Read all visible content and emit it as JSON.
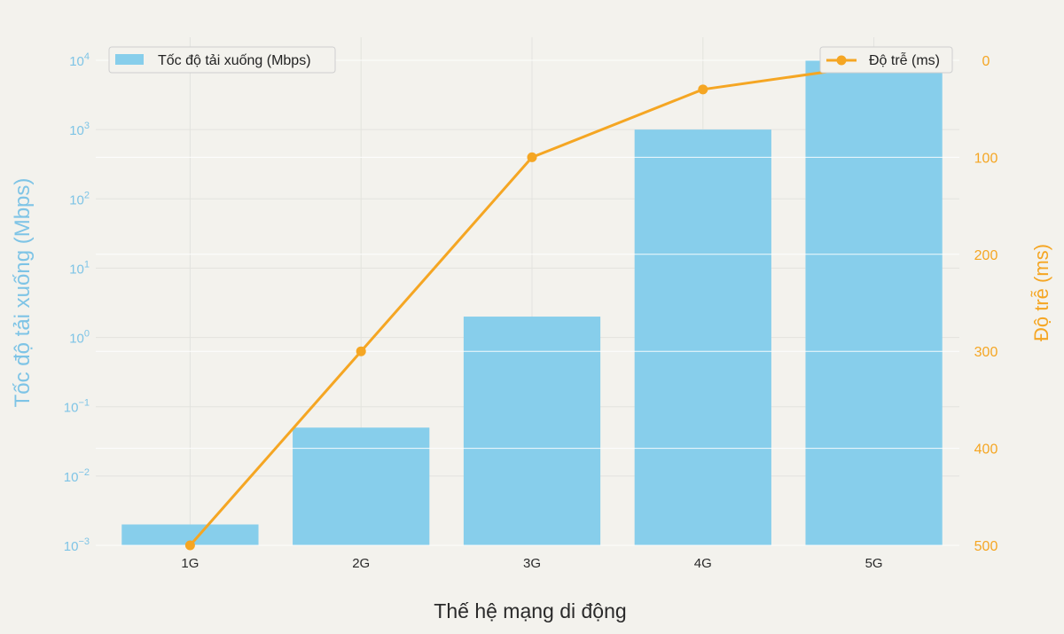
{
  "chart_data": {
    "type": "bar",
    "categories": [
      "1G",
      "2G",
      "3G",
      "4G",
      "5G"
    ],
    "xlabel": "Thế hệ mạng di động",
    "series": [
      {
        "name": "Tốc độ tải xuống (Mbps)",
        "type": "bar",
        "axis": "left",
        "color": "#87ceeb",
        "values": [
          0.002,
          0.05,
          2,
          1000,
          10000
        ]
      },
      {
        "name": "Độ trễ (ms)",
        "type": "line",
        "axis": "right",
        "color": "#f5a623",
        "values": [
          500,
          300,
          100,
          30,
          5
        ]
      }
    ],
    "y_left": {
      "label": "Tốc độ tải xuống (Mbps)",
      "scale": "log",
      "lim": [
        0.001,
        10000
      ],
      "ticks": [
        {
          "base": "10",
          "exp": "4"
        },
        {
          "base": "10",
          "exp": "3"
        },
        {
          "base": "10",
          "exp": "2"
        },
        {
          "base": "10",
          "exp": "1"
        },
        {
          "base": "10",
          "exp": "0"
        },
        {
          "base": "10",
          "exp": "−1"
        },
        {
          "base": "10",
          "exp": "−2"
        },
        {
          "base": "10",
          "exp": "−3"
        }
      ]
    },
    "y_right": {
      "label": "Độ trễ (ms)",
      "scale": "linear",
      "inverted": true,
      "lim": [
        0,
        500
      ],
      "ticks": [
        "0",
        "100",
        "200",
        "300",
        "400",
        "500"
      ]
    },
    "grid": true,
    "legend_left_position": "top-left",
    "legend_right_position": "top-right"
  }
}
